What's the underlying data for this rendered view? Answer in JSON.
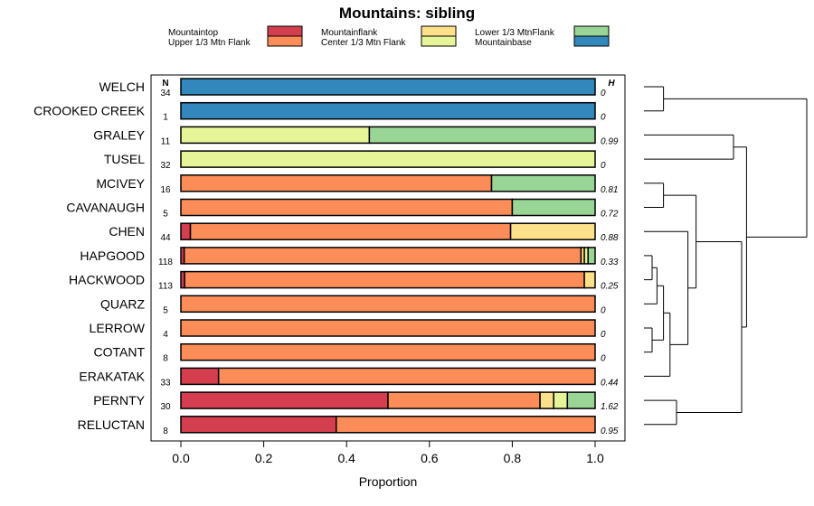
{
  "chart_data": {
    "type": "bar",
    "orientation": "horizontal",
    "stacked": true,
    "title": "Mountains: sibling",
    "xlabel": "Proportion",
    "ylabel": "",
    "xlim": [
      0,
      1
    ],
    "xticks": [
      0,
      0.2,
      0.4,
      0.6,
      0.8,
      1
    ],
    "xtick_labels": [
      "0.0",
      "0.2",
      "0.4",
      "0.6",
      "0.8",
      "1.0"
    ],
    "n_header": "N",
    "h_header": "H",
    "legend_position": "top",
    "series_names": [
      "Mountaintop",
      "Upper 1/3 Mtn Flank",
      "Mountainflank",
      "Center 1/3 Mtn Flank",
      "Lower 1/3 MtnFlank",
      "Mountainbase"
    ],
    "legend": [
      {
        "label": "Mountaintop",
        "color": "#d53e4f"
      },
      {
        "label": "Upper 1/3 Mtn Flank",
        "color": "#fc8d59"
      },
      {
        "label": "Mountainflank",
        "color": "#fee08b"
      },
      {
        "label": "Center 1/3 Mtn Flank",
        "color": "#e6f598"
      },
      {
        "label": "Lower 1/3 MtnFlank",
        "color": "#99d594"
      },
      {
        "label": "Mountainbase",
        "color": "#3288bd"
      }
    ],
    "categories": [
      "WELCH",
      "CROOKED CREEK",
      "GRALEY",
      "TUSEL",
      "MCIVEY",
      "CAVANAUGH",
      "CHEN",
      "HAPGOOD",
      "HACKWOOD",
      "QUARZ",
      "LERROW",
      "COTANT",
      "ERAKATAK",
      "PERNTY",
      "RELUCTAN"
    ],
    "n": [
      "34",
      "1",
      "11",
      "32",
      "16",
      "5",
      "44",
      "118",
      "113",
      "5",
      "4",
      "8",
      "33",
      "30",
      "8"
    ],
    "h": [
      "0",
      "0",
      "0.99",
      "0",
      "0.81",
      "0.72",
      "0.88",
      "0.33",
      "0.25",
      "0",
      "0",
      "0",
      "0.44",
      "1.62",
      "0.95"
    ],
    "series": [
      {
        "name": "Mountaintop",
        "values": [
          0,
          0,
          0,
          0,
          0,
          0,
          0.023,
          0.008,
          0.009,
          0,
          0,
          0,
          0.091,
          0.5,
          0.375
        ]
      },
      {
        "name": "Upper 1/3 Mtn Flank",
        "values": [
          0,
          0,
          0,
          0,
          0.75,
          0.8,
          0.773,
          0.958,
          0.965,
          1,
          1,
          1,
          0.909,
          0.367,
          0.625
        ]
      },
      {
        "name": "Mountainflank",
        "values": [
          0,
          0,
          0,
          0,
          0,
          0,
          0.204,
          0.008,
          0.026,
          0,
          0,
          0,
          0,
          0.033,
          0
        ]
      },
      {
        "name": "Center 1/3 Mtn Flank",
        "values": [
          0,
          0,
          0.455,
          1,
          0,
          0,
          0,
          0.009,
          0,
          0,
          0,
          0,
          0,
          0.033,
          0
        ]
      },
      {
        "name": "Lower 1/3 MtnFlank",
        "values": [
          0,
          0,
          0.545,
          0,
          0.25,
          0.2,
          0,
          0.017,
          0,
          0,
          0,
          0,
          0,
          0.067,
          0
        ]
      },
      {
        "name": "Mountainbase",
        "values": [
          1,
          1,
          0,
          0,
          0,
          0,
          0,
          0,
          0,
          0,
          0,
          0,
          0,
          0,
          0
        ]
      }
    ],
    "dendrogram": {
      "description": "hierarchical clustering of rows (topology only)",
      "merges": [
        {
          "id": "a",
          "left": 0,
          "right": 1,
          "height": 0.12
        },
        {
          "id": "b",
          "left": 2,
          "right": 3,
          "height": 0.55
        },
        {
          "id": "c",
          "left": 4,
          "right": 5,
          "height": 0.12
        },
        {
          "id": "d",
          "left": 7,
          "right": 8,
          "height": 0.05
        },
        {
          "id": "e",
          "left": 10,
          "right": 11,
          "height": 0.05
        },
        {
          "id": "f",
          "left": "d",
          "right": 9,
          "height": 0.08
        },
        {
          "id": "g",
          "left": "f",
          "right": "e",
          "height": 0.12
        },
        {
          "id": "h",
          "left": "g",
          "right": 12,
          "height": 0.16
        },
        {
          "id": "i",
          "left": 6,
          "right": "h",
          "height": 0.27
        },
        {
          "id": "j",
          "left": "c",
          "right": "i",
          "height": 0.32
        },
        {
          "id": "k",
          "left": 13,
          "right": 14,
          "height": 0.2
        },
        {
          "id": "l",
          "left": "j",
          "right": "k",
          "height": 0.6
        },
        {
          "id": "m",
          "left": "b",
          "right": "l",
          "height": 0.63
        },
        {
          "id": "n",
          "left": "a",
          "right": "m",
          "height": 1.0
        }
      ]
    }
  }
}
